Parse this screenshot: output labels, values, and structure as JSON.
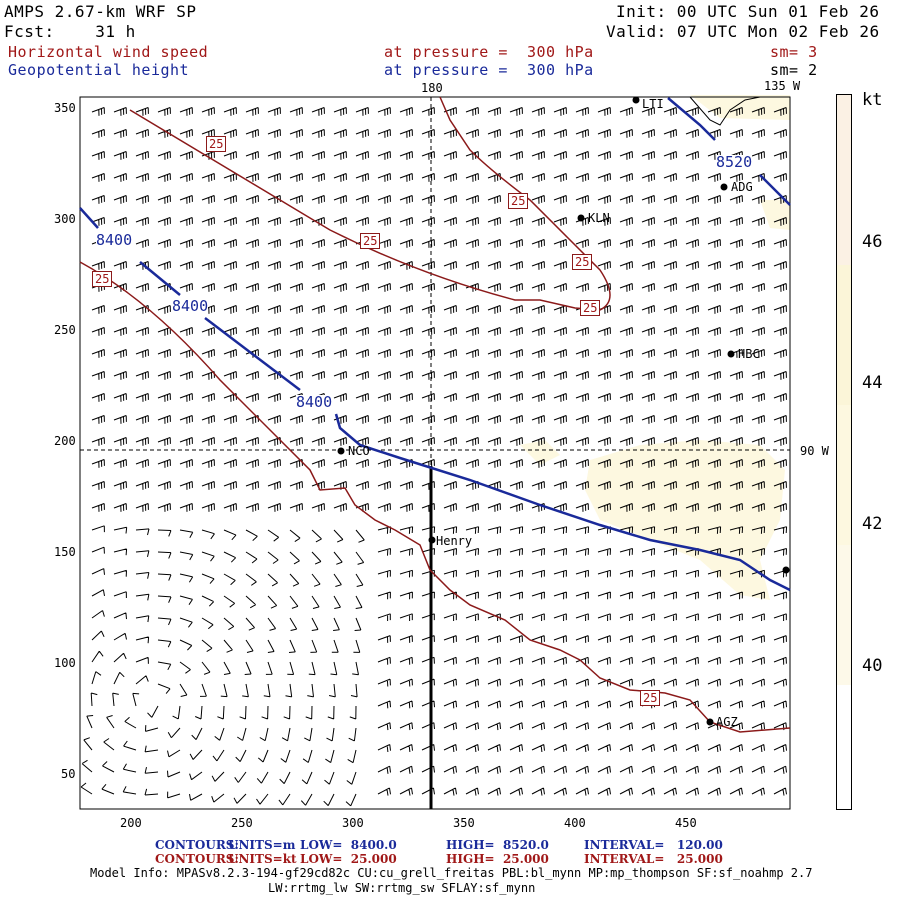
{
  "header": {
    "model": "AMPS 2.67-km WRF SP",
    "fcst": "Fcst:    31 h",
    "init": "Init: 00 UTC Sun 01 Feb 26",
    "valid": "Valid: 07 UTC Mon 02 Feb 26",
    "field1": "Horizontal wind speed",
    "field2": "Geopotential height",
    "level1": "at pressure =  300 hPa",
    "level2": "at pressure =  300 hPa",
    "sm1": "sm= 3",
    "sm2": "sm= 2"
  },
  "map": {
    "x_ticks": [
      "200",
      "250",
      "300",
      "350",
      "400",
      "450"
    ],
    "y_ticks": [
      "350",
      "300",
      "250",
      "200",
      "150",
      "100",
      "50"
    ],
    "meridian_top": "180",
    "meridian_135": "135 W",
    "meridian_90": "90 W",
    "stations": [
      "LTI",
      "ADG",
      "KLN",
      "HBC",
      "NCO",
      "Henry",
      "AGZ"
    ],
    "height_labels": [
      "8400",
      "8400",
      "8400",
      "8520"
    ],
    "speed_labels": [
      "25",
      "25",
      "25",
      "25",
      "25",
      "25",
      "25"
    ]
  },
  "colorbar": {
    "unit": "kt",
    "ticks": [
      "46",
      "44",
      "42",
      "40"
    ],
    "colors": [
      "#fbf1e4",
      "#fbf5d8",
      "#fdf8e0",
      "#fdf9e9",
      "#ffffff"
    ]
  },
  "footer": {
    "c1_label": "CONTOURS:",
    "c1_units": "UNITS=m",
    "c1_low": "LOW=  8400.0",
    "c1_high": "HIGH=  8520.0",
    "c1_interval": "INTERVAL=   120.00",
    "c2_label": "CONTOURS:",
    "c2_units": "UNITS=kt",
    "c2_low": "LOW=  25.000",
    "c2_high": "HIGH=  25.000",
    "c2_interval": "INTERVAL=   25.000",
    "model_info": "Model Info: MPASv8.2.3-194-gf29cd82c CU:cu_grell_freitas PBL:bl_mynn MP:mp_thompson SF:sf_noahmp 2.7",
    "model_info2": "LW:rrtmg_lw SW:rrtmg_sw SFLAY:sf_mynn"
  },
  "colors": {
    "height": "#1a2a9a",
    "speed": "#8b1a1a"
  }
}
